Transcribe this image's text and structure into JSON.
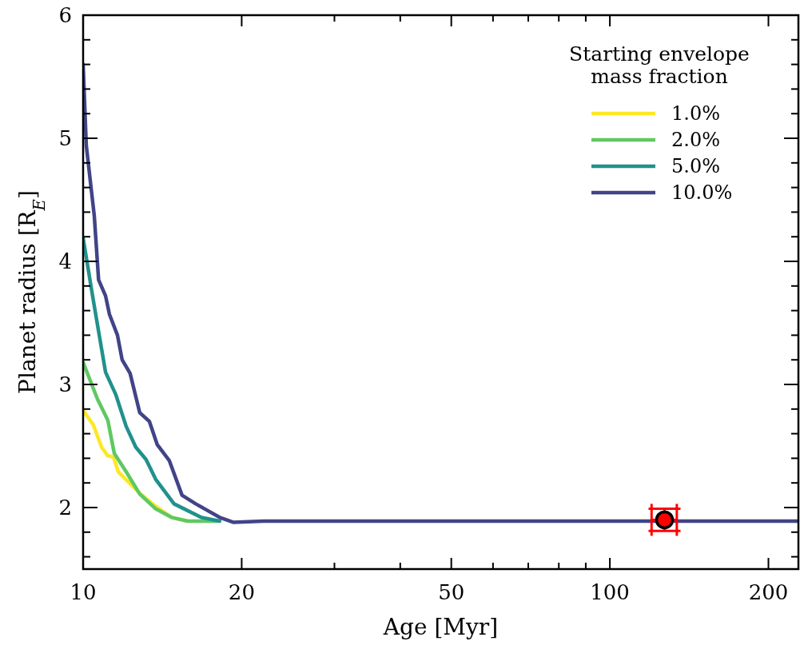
{
  "chart_data": {
    "type": "line",
    "xlabel": "Age [Myr]",
    "ylabel": "Planet radius [R$_{E}$]",
    "legend_title": "Starting envelope\nmass fraction",
    "legend": "top right",
    "log": "x",
    "grid": false,
    "xlim": [
      10,
      228
    ],
    "xticks": [
      10,
      20,
      {
        "value": 30,
        "label": null
      },
      {
        "value": 40,
        "label": null
      },
      50,
      {
        "value": 60,
        "label": null
      },
      {
        "value": 70,
        "label": null
      },
      {
        "value": 80,
        "label": null
      },
      {
        "value": 90,
        "label": null
      },
      100,
      200
    ],
    "ylim": [
      1.5,
      6
    ],
    "yticks": [
      {
        "value": 1.6,
        "label": null
      },
      {
        "value": 1.8,
        "label": null
      },
      2,
      {
        "value": 2.2,
        "label": null
      },
      {
        "value": 2.4,
        "label": null
      },
      {
        "value": 2.6,
        "label": null
      },
      {
        "value": 2.8,
        "label": null
      },
      3,
      {
        "value": 3.2,
        "label": null
      },
      {
        "value": 3.4,
        "label": null
      },
      {
        "value": 3.6,
        "label": null
      },
      {
        "value": 3.8,
        "label": null
      },
      4,
      {
        "value": 4.2,
        "label": null
      },
      {
        "value": 4.4,
        "label": null
      },
      {
        "value": 4.6,
        "label": null
      },
      {
        "value": 4.8,
        "label": null
      },
      5,
      {
        "value": 5.2,
        "label": null
      },
      {
        "value": 5.4,
        "label": null
      },
      {
        "value": 5.6,
        "label": null
      },
      {
        "value": 5.8,
        "label": null
      },
      6
    ],
    "series": [
      {
        "name": "1.0%",
        "color": "#fde725",
        "x": [
          10,
          10.46,
          10.84,
          11.14,
          11.42,
          11.66,
          12.37,
          12.94,
          13.73,
          14.72,
          15.8
        ],
        "values": [
          2.79,
          2.67,
          2.49,
          2.42,
          2.41,
          2.29,
          2.18,
          2.1,
          2.01,
          1.92,
          1.89
        ]
      },
      {
        "name": "2.0%",
        "color": "#5ec962",
        "x": [
          10,
          10.65,
          11.14,
          11.46,
          12.07,
          12.81,
          13.73,
          14.72,
          15.8,
          18
        ],
        "values": [
          3.18,
          2.88,
          2.71,
          2.44,
          2.29,
          2.11,
          1.99,
          1.92,
          1.89,
          1.89
        ]
      },
      {
        "name": "5.0%",
        "color": "#21918c",
        "x": [
          10,
          10.46,
          10.84,
          11.03,
          11.53,
          12.07,
          12.59,
          13.17,
          13.73,
          14.88,
          16.75,
          18.16
        ],
        "values": [
          4.19,
          3.68,
          3.29,
          3.1,
          2.92,
          2.66,
          2.49,
          2.39,
          2.23,
          2.03,
          1.92,
          1.89
        ]
      },
      {
        "name": "10.0%",
        "color": "#414487",
        "x": [
          10,
          10.14,
          10.5,
          10.7,
          11.03,
          11.22,
          11.62,
          11.86,
          12.28,
          12.81,
          13.36,
          13.83,
          14.58,
          15.41,
          16.36,
          18.16,
          19.27,
          22,
          228
        ],
        "values": [
          5.6,
          4.94,
          4.37,
          3.85,
          3.72,
          3.57,
          3.4,
          3.2,
          3.09,
          2.77,
          2.7,
          2.51,
          2.38,
          2.1,
          2.03,
          1.92,
          1.88,
          1.89,
          1.89
        ]
      },
      {
        "type": "scatter",
        "color": "#ff0000",
        "marker": "circle",
        "x": [
          127
        ],
        "values": [
          1.9
        ],
        "errors": [
          [
            1.81,
            1.99
          ]
        ],
        "xerrors": [
          [
            120,
            134
          ]
        ]
      }
    ]
  }
}
